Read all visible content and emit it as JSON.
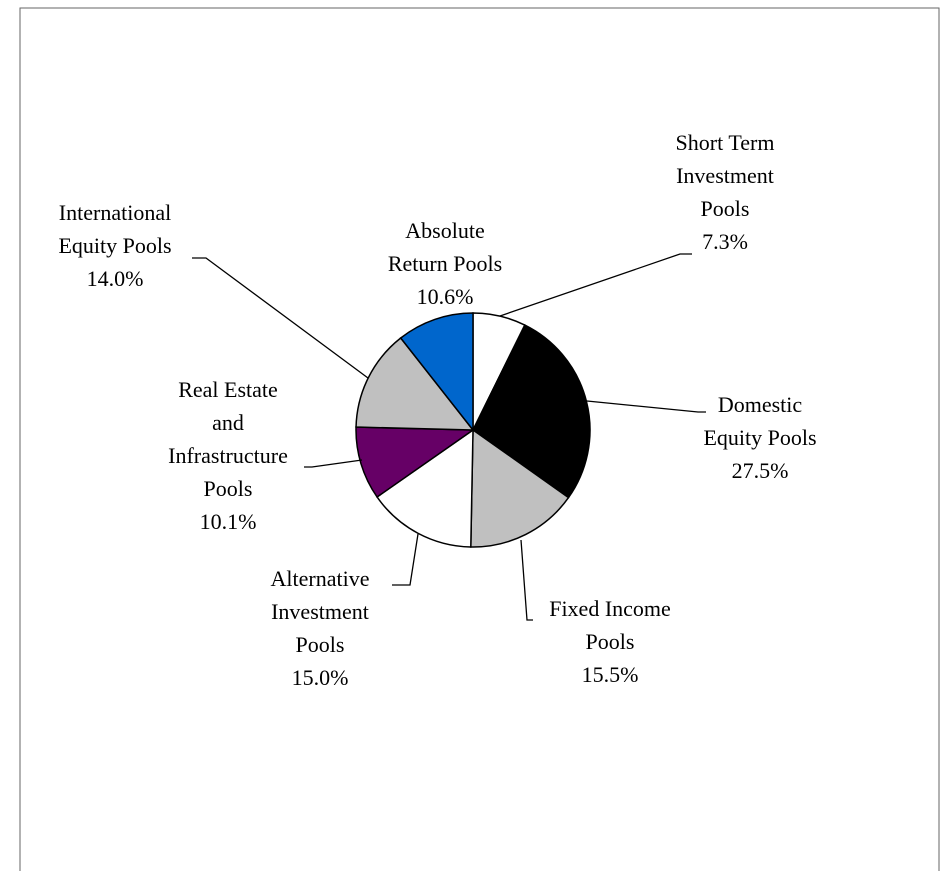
{
  "chart_data": {
    "type": "pie",
    "categories": [
      "Short Term Investment Pools",
      "Domestic Equity Pools",
      "Fixed Income Pools",
      "Alternative Investment Pools",
      "Real Estate and Infrastructure Pools",
      "International Equity Pools",
      "Absolute Return Pools"
    ],
    "values": [
      7.3,
      27.5,
      15.5,
      15.0,
      10.1,
      14.0,
      10.6
    ],
    "value_labels": [
      "7.3%",
      "27.5%",
      "15.5%",
      "15.0%",
      "10.1%",
      "14.0%",
      "10.6%"
    ],
    "colors": [
      "#ffffff",
      "#000000",
      "#c0c0c0",
      "#ffffff",
      "#660066",
      "#c0c0c0",
      "#0066cc"
    ]
  }
}
